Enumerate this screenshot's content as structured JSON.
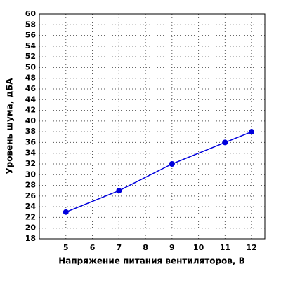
{
  "chart_data": {
    "type": "line",
    "x_label": "Напряжение питания вентиляторов, В",
    "y_label": "Уровень шума, дБА",
    "x": [
      5,
      7,
      9,
      11,
      12
    ],
    "series": [
      {
        "color": "#0000dd",
        "values": [
          23,
          27,
          32,
          36,
          38
        ]
      }
    ],
    "xlim": [
      4,
      12.5
    ],
    "xticks": [
      5,
      6,
      7,
      8,
      9,
      10,
      11,
      12
    ],
    "ylim": [
      18,
      60
    ],
    "yticks": [
      18,
      20,
      22,
      24,
      26,
      28,
      30,
      32,
      34,
      36,
      38,
      40,
      42,
      44,
      46,
      48,
      50,
      52,
      54,
      56,
      58,
      60
    ],
    "grid": true
  }
}
